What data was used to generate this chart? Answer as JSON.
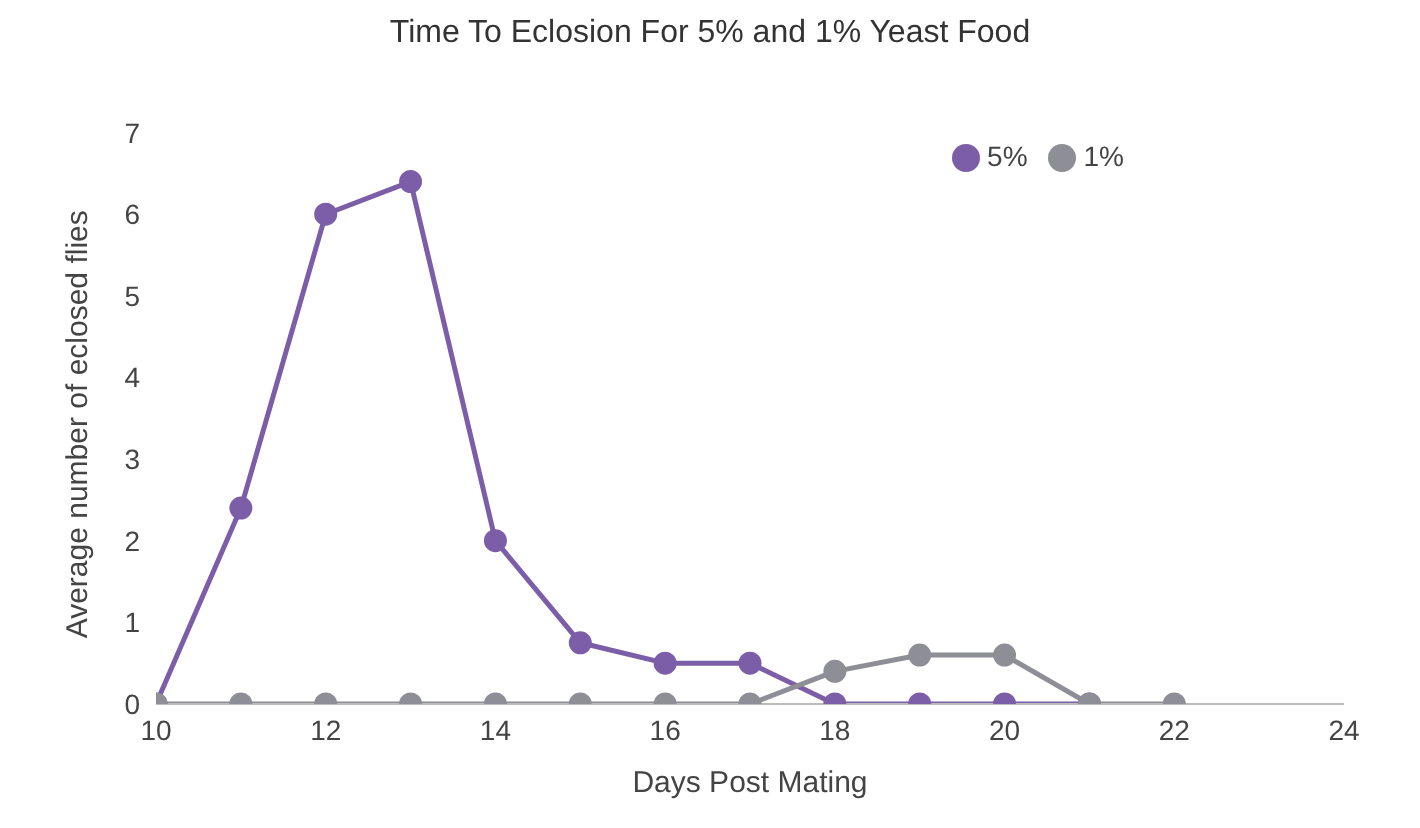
{
  "chart_data": {
    "type": "line",
    "title": "Time To Eclosion For 5% and 1% Yeast Food",
    "xlabel": "Days Post Mating",
    "ylabel": "Average number of eclosed flies",
    "xlim": [
      10,
      24
    ],
    "xticks": [
      10,
      12,
      14,
      16,
      18,
      20,
      22,
      24
    ],
    "ylim": [
      0,
      7
    ],
    "yticks": [
      0,
      1,
      2,
      3,
      4,
      5,
      6,
      7
    ],
    "grid": false,
    "legend": "top right",
    "marker": "circle",
    "line_style": "solid",
    "series": [
      {
        "name": "5%",
        "color": "#7b5ea7",
        "x": [
          10,
          11,
          12,
          13,
          14,
          15,
          16,
          17,
          18,
          19,
          20,
          21
        ],
        "values": [
          0,
          2.4,
          6.0,
          6.4,
          2.0,
          0.75,
          0.5,
          0.5,
          0,
          0,
          0,
          0
        ]
      },
      {
        "name": "1%",
        "color": "#8e8e96",
        "x": [
          10,
          11,
          12,
          13,
          14,
          15,
          16,
          17,
          18,
          19,
          20,
          21,
          22
        ],
        "values": [
          0,
          0,
          0,
          0,
          0,
          0,
          0,
          0,
          0.4,
          0.6,
          0.6,
          0,
          0
        ]
      }
    ]
  }
}
